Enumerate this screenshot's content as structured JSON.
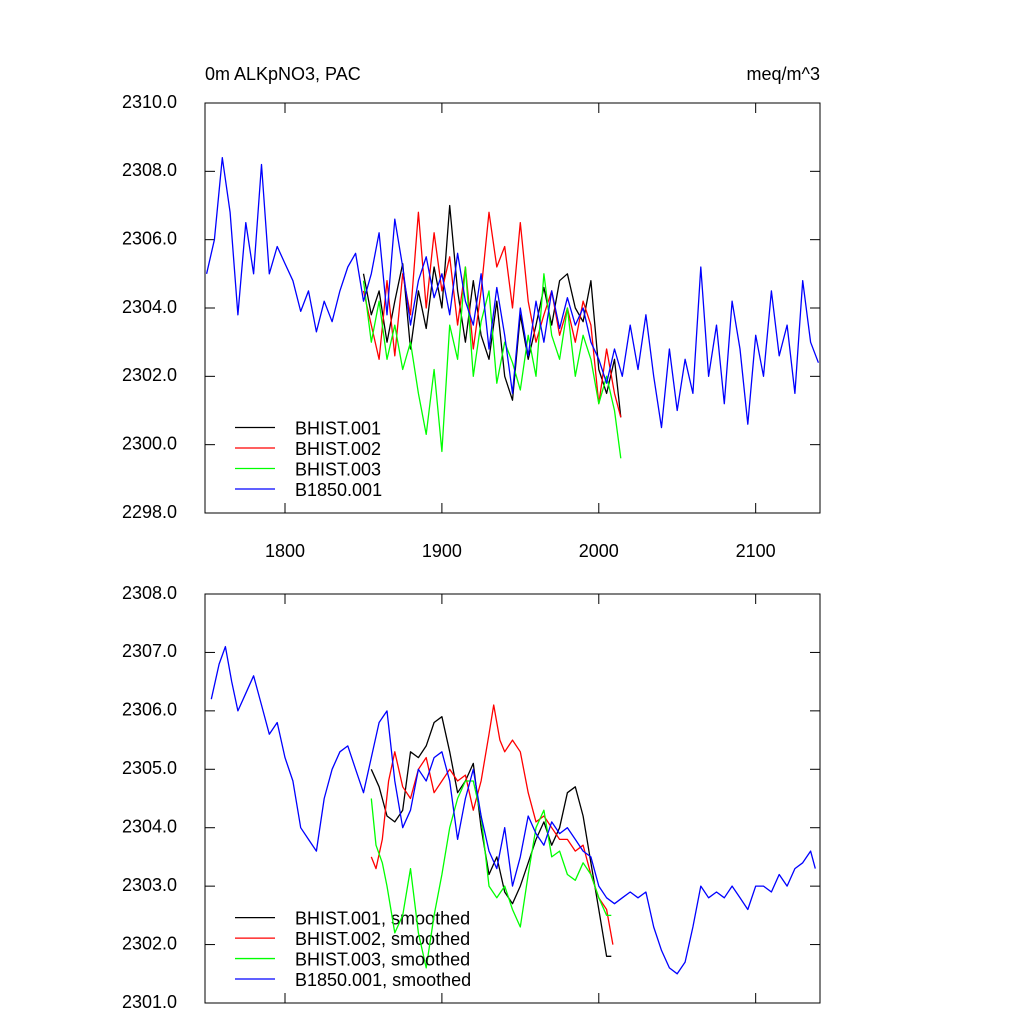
{
  "chart_data": [
    {
      "type": "line",
      "title": "0m ALKpNO3, PAC",
      "units": "meq/m^3",
      "xlim": [
        1749,
        2141
      ],
      "ylim": [
        2298,
        2310
      ],
      "xticks": [
        1800,
        1900,
        2000,
        2100
      ],
      "xtick_labels": true,
      "yticks": [
        {
          "value": 2298,
          "label": "2298.0"
        },
        {
          "value": 2300,
          "label": "2300.0"
        },
        {
          "value": 2302,
          "label": "2302.0"
        },
        {
          "value": 2304,
          "label": "2304.0"
        },
        {
          "value": 2306,
          "label": "2306.0"
        },
        {
          "value": 2308,
          "label": "2308.0"
        },
        {
          "value": 2310,
          "label": "2310.0"
        }
      ],
      "legend": "lower left",
      "series": [
        {
          "name": "BHIST.001",
          "color": "#000000",
          "x": [
            1850,
            1855,
            1860,
            1865,
            1870,
            1875,
            1880,
            1885,
            1890,
            1895,
            1900,
            1905,
            1910,
            1915,
            1920,
            1925,
            1930,
            1935,
            1940,
            1945,
            1950,
            1955,
            1960,
            1965,
            1970,
            1975,
            1980,
            1985,
            1990,
            1995,
            2000,
            2005,
            2010,
            2014
          ],
          "values": [
            2305,
            2303.8,
            2304.5,
            2303,
            2304.2,
            2305.3,
            2302.8,
            2304.5,
            2303.4,
            2305.2,
            2304,
            2307,
            2304.5,
            2303,
            2304.8,
            2303.2,
            2302.5,
            2304.2,
            2302,
            2301.3,
            2303.8,
            2302.5,
            2303.5,
            2304.6,
            2303.5,
            2304.8,
            2305,
            2304,
            2303.6,
            2304.8,
            2302.2,
            2301.5,
            2302.5,
            2300.8
          ]
        },
        {
          "name": "BHIST.002",
          "color": "#ff0000",
          "x": [
            1850,
            1855,
            1860,
            1865,
            1870,
            1875,
            1880,
            1885,
            1890,
            1895,
            1900,
            1905,
            1910,
            1915,
            1920,
            1925,
            1930,
            1935,
            1940,
            1945,
            1950,
            1955,
            1960,
            1965,
            1970,
            1975,
            1980,
            1985,
            1990,
            1995,
            2000,
            2005,
            2010,
            2014
          ],
          "values": [
            2304.5,
            2303.5,
            2302.5,
            2304.8,
            2302.6,
            2305,
            2303.8,
            2306.8,
            2304,
            2306.2,
            2304.5,
            2305.5,
            2303.5,
            2305.2,
            2302.8,
            2304.5,
            2306.8,
            2305.2,
            2305.8,
            2304,
            2306.5,
            2304.2,
            2303,
            2303.8,
            2304.5,
            2303.2,
            2304,
            2303,
            2304.2,
            2303.5,
            2301.2,
            2302.8,
            2301.5,
            2300.8
          ]
        },
        {
          "name": "BHIST.003",
          "color": "#00ff00",
          "x": [
            1850,
            1855,
            1860,
            1865,
            1870,
            1875,
            1880,
            1885,
            1890,
            1895,
            1900,
            1905,
            1910,
            1915,
            1920,
            1925,
            1930,
            1935,
            1940,
            1945,
            1950,
            1955,
            1960,
            1965,
            1970,
            1975,
            1980,
            1985,
            1990,
            1995,
            2000,
            2005,
            2010,
            2014
          ],
          "values": [
            2304.8,
            2303,
            2304.2,
            2302.5,
            2303.5,
            2302.2,
            2303,
            2301.5,
            2300.3,
            2302.2,
            2299.8,
            2303.5,
            2302.5,
            2305.2,
            2302,
            2303.6,
            2304.5,
            2301.8,
            2303,
            2302.4,
            2301.6,
            2303.2,
            2302,
            2305,
            2303.2,
            2302.5,
            2304,
            2302,
            2303.2,
            2302.5,
            2301.2,
            2302,
            2301,
            2299.6
          ]
        },
        {
          "name": "B1850.001",
          "color": "#0000ff",
          "x": [
            1750,
            1755,
            1760,
            1765,
            1770,
            1775,
            1780,
            1785,
            1790,
            1795,
            1800,
            1805,
            1810,
            1815,
            1820,
            1825,
            1830,
            1835,
            1840,
            1845,
            1850,
            1855,
            1860,
            1865,
            1870,
            1875,
            1880,
            1885,
            1890,
            1895,
            1900,
            1905,
            1910,
            1915,
            1920,
            1925,
            1930,
            1935,
            1940,
            1945,
            1950,
            1955,
            1960,
            1965,
            1970,
            1975,
            1980,
            1985,
            1990,
            1995,
            2000,
            2005,
            2010,
            2015,
            2020,
            2025,
            2030,
            2035,
            2040,
            2045,
            2050,
            2055,
            2060,
            2065,
            2070,
            2075,
            2080,
            2085,
            2090,
            2095,
            2100,
            2105,
            2110,
            2115,
            2120,
            2125,
            2130,
            2135,
            2140
          ],
          "values": [
            2305,
            2306,
            2308.4,
            2306.8,
            2303.8,
            2306.5,
            2305,
            2308.2,
            2305,
            2305.8,
            2305.3,
            2304.8,
            2303.9,
            2304.5,
            2303.3,
            2304.2,
            2303.6,
            2304.5,
            2305.2,
            2305.6,
            2304.2,
            2305,
            2306.2,
            2303.8,
            2306.6,
            2305.2,
            2303.5,
            2304.8,
            2305.5,
            2304.3,
            2305,
            2303.8,
            2305.6,
            2304.2,
            2303.5,
            2305,
            2302.8,
            2304.6,
            2303.2,
            2301.5,
            2304,
            2302.6,
            2304.2,
            2303,
            2304.5,
            2303.4,
            2304.3,
            2303.5,
            2304,
            2303,
            2302.5,
            2301.8,
            2302.8,
            2302,
            2303.5,
            2302.2,
            2303.8,
            2302,
            2300.5,
            2302.8,
            2301,
            2302.5,
            2301.5,
            2305.2,
            2302,
            2303.5,
            2301.2,
            2304.2,
            2302.8,
            2300.6,
            2303.2,
            2302,
            2304.5,
            2302.6,
            2303.5,
            2301.5,
            2304.8,
            2303,
            2302.4
          ]
        }
      ]
    },
    {
      "type": "line",
      "xlim": [
        1749,
        2141
      ],
      "ylim": [
        2301,
        2308
      ],
      "xticks": [
        1800,
        1900,
        2000,
        2100
      ],
      "xtick_labels": false,
      "yticks": [
        {
          "value": 2301,
          "label": "2301.0"
        },
        {
          "value": 2302,
          "label": "2302.0"
        },
        {
          "value": 2303,
          "label": "2303.0"
        },
        {
          "value": 2304,
          "label": "2304.0"
        },
        {
          "value": 2305,
          "label": "2305.0"
        },
        {
          "value": 2306,
          "label": "2306.0"
        },
        {
          "value": 2307,
          "label": "2307.0"
        },
        {
          "value": 2308,
          "label": "2308.0"
        }
      ],
      "legend": "lower left",
      "series": [
        {
          "name": "BHIST.001, smoothed",
          "color": "#000000",
          "x": [
            1855,
            1860,
            1865,
            1870,
            1875,
            1880,
            1885,
            1890,
            1895,
            1900,
            1905,
            1910,
            1915,
            1920,
            1925,
            1930,
            1935,
            1940,
            1945,
            1950,
            1955,
            1960,
            1965,
            1970,
            1975,
            1980,
            1985,
            1990,
            1995,
            2000,
            2005,
            2008
          ],
          "values": [
            2305,
            2304.7,
            2304.2,
            2304.1,
            2304.3,
            2305.3,
            2305.2,
            2305.4,
            2305.8,
            2305.9,
            2305.3,
            2304.6,
            2304.8,
            2305.1,
            2304,
            2303.2,
            2303.5,
            2302.9,
            2302.7,
            2303,
            2303.4,
            2303.8,
            2304.1,
            2303.7,
            2304,
            2304.6,
            2304.7,
            2304.2,
            2303.4,
            2302.6,
            2301.8,
            2301.8
          ]
        },
        {
          "name": "BHIST.002, smoothed",
          "color": "#ff0000",
          "x": [
            1855,
            1858,
            1862,
            1866,
            1870,
            1875,
            1880,
            1885,
            1890,
            1895,
            1900,
            1905,
            1910,
            1915,
            1920,
            1925,
            1930,
            1933,
            1937,
            1940,
            1945,
            1950,
            1955,
            1960,
            1965,
            1970,
            1975,
            1980,
            1985,
            1990,
            1995,
            2000,
            2005,
            2009
          ],
          "values": [
            2303.5,
            2303.3,
            2303.8,
            2304.8,
            2305.3,
            2304.7,
            2304.5,
            2305,
            2305.2,
            2304.6,
            2304.8,
            2305,
            2304.8,
            2304.9,
            2304.3,
            2304.8,
            2305.6,
            2306.1,
            2305.5,
            2305.3,
            2305.5,
            2305.3,
            2304.6,
            2304.1,
            2304.2,
            2304,
            2303.8,
            2303.8,
            2303.6,
            2303.7,
            2303.2,
            2302.8,
            2302.6,
            2302
          ]
        },
        {
          "name": "BHIST.003, smoothed",
          "color": "#00ff00",
          "x": [
            1855,
            1858,
            1862,
            1865,
            1870,
            1875,
            1880,
            1885,
            1890,
            1895,
            1900,
            1905,
            1910,
            1915,
            1920,
            1925,
            1930,
            1935,
            1940,
            1945,
            1950,
            1955,
            1960,
            1965,
            1970,
            1975,
            1980,
            1985,
            1990,
            1995,
            2000,
            2005,
            2008
          ],
          "values": [
            2304.5,
            2303.7,
            2303.4,
            2303,
            2302.2,
            2302.5,
            2303.3,
            2302.2,
            2301.6,
            2302.5,
            2303.2,
            2304,
            2304.5,
            2304.8,
            2304.8,
            2304.2,
            2303,
            2302.8,
            2303,
            2302.6,
            2302.3,
            2303.2,
            2304,
            2304.3,
            2303.5,
            2303.6,
            2303.2,
            2303.1,
            2303.4,
            2303.2,
            2302.8,
            2302.5,
            2302.5
          ]
        },
        {
          "name": "B1850.001, smoothed",
          "color": "#0000ff",
          "x": [
            1753,
            1758,
            1762,
            1766,
            1770,
            1775,
            1780,
            1785,
            1790,
            1795,
            1800,
            1805,
            1810,
            1815,
            1820,
            1825,
            1830,
            1835,
            1840,
            1845,
            1850,
            1855,
            1860,
            1865,
            1870,
            1875,
            1880,
            1885,
            1890,
            1895,
            1900,
            1905,
            1910,
            1915,
            1920,
            1925,
            1930,
            1935,
            1940,
            1945,
            1950,
            1955,
            1960,
            1965,
            1970,
            1975,
            1980,
            1985,
            1990,
            1995,
            2000,
            2005,
            2010,
            2015,
            2020,
            2025,
            2030,
            2035,
            2040,
            2045,
            2050,
            2055,
            2060,
            2065,
            2070,
            2075,
            2080,
            2085,
            2090,
            2095,
            2100,
            2105,
            2110,
            2115,
            2120,
            2125,
            2130,
            2135,
            2138
          ],
          "values": [
            2306.2,
            2306.8,
            2307.1,
            2306.5,
            2306,
            2306.3,
            2306.6,
            2306.1,
            2305.6,
            2305.8,
            2305.2,
            2304.8,
            2304,
            2303.8,
            2303.6,
            2304.5,
            2305,
            2305.3,
            2305.4,
            2305,
            2304.6,
            2305.2,
            2305.8,
            2306,
            2304.8,
            2304,
            2304.3,
            2305,
            2304.8,
            2305.2,
            2305.3,
            2304.8,
            2303.8,
            2304.5,
            2305,
            2304.2,
            2303.6,
            2303.3,
            2304,
            2303,
            2303.5,
            2304.2,
            2303.9,
            2303.7,
            2304.1,
            2303.9,
            2304,
            2303.8,
            2303.6,
            2303.5,
            2303,
            2302.8,
            2302.7,
            2302.8,
            2302.9,
            2302.8,
            2302.9,
            2302.3,
            2301.9,
            2301.6,
            2301.5,
            2301.7,
            2302.3,
            2303,
            2302.8,
            2302.9,
            2302.8,
            2303,
            2302.8,
            2302.6,
            2303,
            2303,
            2302.9,
            2303.2,
            2303,
            2303.3,
            2303.4,
            2303.6,
            2303.3
          ]
        }
      ]
    }
  ]
}
